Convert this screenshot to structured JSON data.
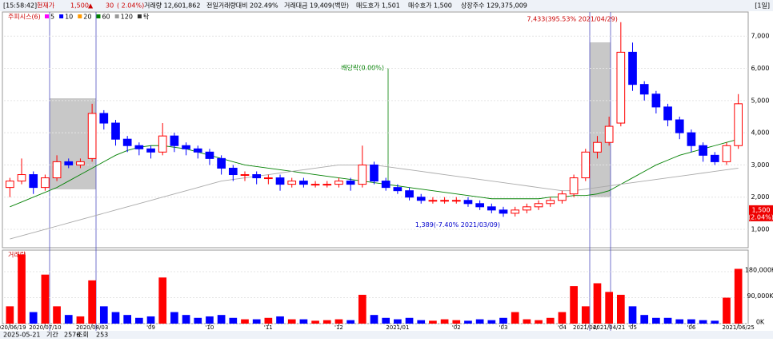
{
  "header": {
    "time": "[15:58:42]",
    "price_label": "현재가",
    "price": "1,500",
    "arrow": "▲",
    "change": "30",
    "change_pct": "( 2.04%)",
    "volume": "거래량 12,601,862",
    "volume_ratio": "전일거래량대비 202.49%",
    "amount": "거래대금 19,409(백만)",
    "ask": "매도호가 1,501",
    "bid": "매수호가 1,500",
    "shares": "상장주수 129,375,009",
    "period": "[1일]"
  },
  "footer": {
    "date": "2025-05-21",
    "range_label": "기간",
    "range": "2576",
    "query": "조회",
    "count": "253"
  },
  "chart_data": [
    {
      "type": "candlestick",
      "legend_title": "주피시스(6)",
      "ma_legend": [
        {
          "name": "5",
          "color": "#ff00ff"
        },
        {
          "name": "10",
          "color": "#0000ff"
        },
        {
          "name": "20",
          "color": "#ff9900"
        },
        {
          "name": "60",
          "color": "#008000"
        },
        {
          "name": "120",
          "color": "#999999"
        },
        {
          "name": "탁",
          "color": "#333333"
        }
      ],
      "categories": [
        "2020/06/19",
        null,
        null,
        "2020/07/10",
        null,
        null,
        null,
        "2020/08/03",
        null,
        null,
        null,
        null,
        "'09",
        null,
        null,
        null,
        null,
        "'10",
        null,
        null,
        null,
        null,
        "'11",
        null,
        null,
        null,
        null,
        null,
        "'12",
        null,
        null,
        null,
        null,
        "2021/01",
        null,
        null,
        null,
        null,
        "'02",
        null,
        null,
        null,
        "'03",
        null,
        null,
        null,
        null,
        "'04",
        null,
        "2021/04/",
        null,
        "2021/04/21",
        null,
        "'05",
        null,
        null,
        null,
        null,
        "'06",
        null,
        null,
        null,
        "2021/06/25"
      ],
      "open": [
        2300,
        2500,
        2700,
        2300,
        2600,
        3100,
        3000,
        3200,
        4600,
        4300,
        3800,
        3600,
        3500,
        3400,
        3900,
        3600,
        3500,
        3400,
        3200,
        2900,
        2700,
        2700,
        2600,
        2600,
        2400,
        2500,
        2400,
        2400,
        2400,
        2500,
        2400,
        3000,
        2500,
        2300,
        2200,
        2000,
        1900,
        1900,
        1900,
        1900,
        1800,
        1700,
        1600,
        1500,
        1600,
        1700,
        1800,
        1900,
        2100,
        2600,
        3400,
        3700,
        4300,
        6500,
        5500,
        5200,
        4800,
        4400,
        4000,
        3600,
        3300,
        3100,
        3600
      ],
      "high": [
        2600,
        3200,
        2800,
        2700,
        3300,
        3200,
        3200,
        4900,
        4700,
        4400,
        3900,
        3700,
        3600,
        4300,
        4000,
        3700,
        3600,
        3500,
        3300,
        3000,
        2800,
        2800,
        2700,
        2700,
        2600,
        2600,
        2500,
        2500,
        2600,
        2600,
        3600,
        3100,
        2600,
        2400,
        2300,
        2100,
        2000,
        2000,
        2000,
        2000,
        1900,
        1800,
        1700,
        1700,
        1800,
        1900,
        2000,
        2200,
        2700,
        3500,
        3900,
        4500,
        7433,
        6800,
        5600,
        5300,
        4900,
        4500,
        4100,
        3700,
        3400,
        3700,
        5200
      ],
      "low": [
        2000,
        2400,
        2100,
        2200,
        2500,
        2900,
        2900,
        3100,
        4100,
        3600,
        3400,
        3300,
        3200,
        3300,
        3400,
        3300,
        3200,
        3000,
        2700,
        2500,
        2500,
        2400,
        2400,
        2200,
        2300,
        2300,
        2300,
        2300,
        2300,
        2200,
        2300,
        2400,
        2200,
        2100,
        1900,
        1800,
        1800,
        1800,
        1800,
        1700,
        1600,
        1500,
        1389,
        1400,
        1500,
        1600,
        1700,
        1800,
        2000,
        2500,
        3200,
        3600,
        4200,
        5300,
        5000,
        4600,
        4200,
        3800,
        3400,
        3100,
        3000,
        3000,
        3500
      ],
      "close": [
        2500,
        2700,
        2300,
        2600,
        3100,
        3000,
        3100,
        4600,
        4300,
        3800,
        3600,
        3500,
        3400,
        3900,
        3600,
        3500,
        3400,
        3200,
        2900,
        2700,
        2700,
        2600,
        2600,
        2400,
        2500,
        2400,
        2400,
        2400,
        2500,
        2400,
        3000,
        2500,
        2300,
        2200,
        2000,
        1900,
        1900,
        1900,
        1900,
        1800,
        1700,
        1600,
        1500,
        1600,
        1700,
        1800,
        1900,
        2100,
        2600,
        3400,
        3700,
        4200,
        6500,
        5500,
        5200,
        4800,
        4400,
        4000,
        3600,
        3300,
        3100,
        3600,
        4900
      ],
      "up_color": "#ff0000",
      "down_color": "#0000ff",
      "series": [
        {
          "name": "60",
          "color": "#008000",
          "values": [
            1700,
            1850,
            2000,
            2150,
            2300,
            2500,
            2700,
            2900,
            3100,
            3300,
            3450,
            3550,
            3600,
            3600,
            3550,
            3500,
            3400,
            3300,
            3200,
            3100,
            3000,
            2950,
            2900,
            2850,
            2800,
            2750,
            2700,
            2650,
            2600,
            2550,
            2500,
            2450,
            2400,
            2350,
            2300,
            2250,
            2200,
            2150,
            2100,
            2050,
            2000,
            1950,
            1950,
            1950,
            1950,
            1950,
            2000,
            2000,
            2050,
            2050,
            2100,
            2200,
            2400,
            2600,
            2800,
            3000,
            3150,
            3300,
            3400,
            3500,
            3600,
            3700,
            3800
          ]
        },
        {
          "name": "120",
          "color": "#aaaaaa",
          "values": [
            700,
            800,
            900,
            1000,
            1100,
            1200,
            1300,
            1400,
            1500,
            1600,
            1700,
            1800,
            1900,
            2000,
            2100,
            2200,
            2300,
            2400,
            2500,
            2550,
            2600,
            2650,
            2700,
            2750,
            2800,
            2850,
            2900,
            2950,
            3000,
            3000,
            3000,
            3000,
            2950,
            2900,
            2850,
            2800,
            2750,
            2700,
            2650,
            2600,
            2550,
            2500,
            2450,
            2400,
            2350,
            2300,
            2250,
            2200,
            2200,
            2250,
            2300,
            2350,
            2400,
            2450,
            2500,
            2550,
            2600,
            2650,
            2700,
            2750,
            2800,
            2850,
            2900
          ]
        }
      ],
      "ylim": [
        430,
        7750
      ],
      "yticks": [
        {
          "value": 1000,
          "label": "1,000"
        },
        {
          "value": 2000,
          "label": "2,000"
        },
        {
          "value": 3000,
          "label": "3,000"
        },
        {
          "value": 4000,
          "label": "4,000"
        },
        {
          "value": 5000,
          "label": "5,000"
        },
        {
          "value": 6000,
          "label": "6,000"
        },
        {
          "value": 7000,
          "label": "7,000"
        }
      ],
      "annotations": {
        "high": "7,433(395.53% 2021/04/29)",
        "low": "1,389(-7.40% 2021/03/09)",
        "dividend": "배당락(0.00%)"
      },
      "current": {
        "value": 1500,
        "label": "1,500",
        "pct": "(2.04%)"
      }
    },
    {
      "type": "bar",
      "title": "거래량",
      "values": [
        60000,
        240000,
        40000,
        170000,
        60000,
        30000,
        25000,
        150000,
        60000,
        40000,
        30000,
        20000,
        25000,
        160000,
        40000,
        30000,
        20000,
        25000,
        30000,
        20000,
        15000,
        15000,
        20000,
        25000,
        15000,
        15000,
        10000,
        12000,
        15000,
        12000,
        100000,
        30000,
        20000,
        15000,
        20000,
        12000,
        10000,
        15000,
        12000,
        10000,
        15000,
        12000,
        20000,
        40000,
        15000,
        12000,
        20000,
        40000,
        130000,
        60000,
        140000,
        110000,
        100000,
        60000,
        30000,
        20000,
        20000,
        15000,
        15000,
        12000,
        10000,
        90000,
        190000
      ],
      "ylim": [
        0,
        255000
      ],
      "yticks": [
        {
          "value": 0,
          "label": "0K"
        },
        {
          "value": 90000,
          "label": "90,000K"
        },
        {
          "value": 180000,
          "label": "180,000K"
        }
      ]
    }
  ]
}
